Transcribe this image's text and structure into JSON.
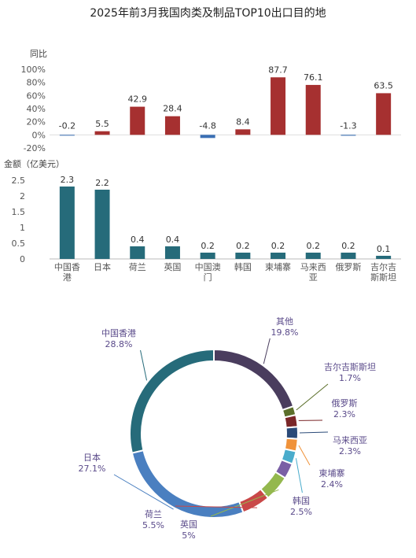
{
  "title": "2025年前3月我国肉类及制品TOP10出口目的地",
  "colors": {
    "yoy_positive": "#a63030",
    "yoy_negative": "#3a6fb3",
    "amount_bar": "#266b7a",
    "pie_label_text": "#5a4a8a"
  },
  "chart_data": [
    {
      "type": "bar",
      "name": "yoy",
      "ylabel": "同比",
      "unit": "%",
      "categories": [
        "中国香港",
        "日本",
        "荷兰",
        "英国",
        "中国澳门",
        "韩国",
        "柬埔寨",
        "马来西亚",
        "俄罗斯",
        "吉尔吉斯斯坦"
      ],
      "values": [
        -0.2,
        5.5,
        42.9,
        28.4,
        -4.8,
        8.4,
        87.7,
        76.1,
        -1.3,
        63.5
      ],
      "value_labels": [
        "-0.2",
        "5.5",
        "42.9",
        "28.4",
        "-4.8",
        "8.4",
        "87.7",
        "76.1",
        "-1.3",
        "63.5"
      ],
      "ylim": [
        -20,
        100
      ],
      "yticks": [
        -20,
        0,
        20,
        40,
        60,
        80,
        100
      ],
      "ytick_labels": [
        "-20%",
        "0%",
        "20%",
        "40%",
        "60%",
        "80%",
        "100%"
      ]
    },
    {
      "type": "bar",
      "name": "amount",
      "ylabel": "金额（亿美元）",
      "categories": [
        "中国香港",
        "日本",
        "荷兰",
        "英国",
        "中国澳门",
        "韩国",
        "柬埔寨",
        "马来西亚",
        "俄罗斯",
        "吉尔吉斯斯坦"
      ],
      "category_lines": [
        [
          "中国香",
          "港"
        ],
        [
          "日本"
        ],
        [
          "荷兰"
        ],
        [
          "英国"
        ],
        [
          "中国澳",
          "门"
        ],
        [
          "韩国"
        ],
        [
          "柬埔寨"
        ],
        [
          "马来西",
          "亚"
        ],
        [
          "俄罗斯"
        ],
        [
          "吉尔吉",
          "斯斯坦"
        ]
      ],
      "values": [
        2.3,
        2.2,
        0.4,
        0.4,
        0.2,
        0.2,
        0.2,
        0.2,
        0.2,
        0.1
      ],
      "value_labels": [
        "2.3",
        "2.2",
        "0.4",
        "0.4",
        "0.2",
        "0.2",
        "0.2",
        "0.2",
        "0.2",
        "0.1"
      ],
      "ylim": [
        0,
        2.5
      ],
      "yticks": [
        0,
        0.5,
        1,
        1.5,
        2,
        2.5
      ],
      "ytick_labels": [
        "0",
        "0.5",
        "1",
        "1.5",
        "2",
        "2.5"
      ]
    },
    {
      "type": "pie",
      "name": "share",
      "start": "12 o'clock",
      "direction": "clockwise",
      "slices": [
        {
          "label": "其他",
          "value": 19.8,
          "display": "19.8%",
          "color": "#4a3d5e"
        },
        {
          "label": "吉尔吉斯斯坦",
          "value": 1.7,
          "display": "1.7%",
          "color": "#5b6f2a"
        },
        {
          "label": "俄罗斯",
          "value": 2.3,
          "display": "2.3%",
          "color": "#7a2628"
        },
        {
          "label": "马来西亚",
          "value": 2.3,
          "display": "2.3%",
          "color": "#2a4a78"
        },
        {
          "label": "柬埔寨",
          "value": 2.4,
          "display": "2.4%",
          "color": "#f0923a"
        },
        {
          "label": "韩国",
          "value": 2.5,
          "display": "2.5%",
          "color": "#4aaccc"
        },
        {
          "label": "中国澳门",
          "value": 3.0,
          "display": "",
          "color": "#7a5fa5"
        },
        {
          "label": "英国",
          "value": 5.0,
          "display": "5%",
          "color": "#94b84e"
        },
        {
          "label": "荷兰",
          "value": 5.5,
          "display": "5.5%",
          "color": "#c94848"
        },
        {
          "label": "日本",
          "value": 27.1,
          "display": "27.1%",
          "color": "#4a7fc0"
        },
        {
          "label": "中国香港",
          "value": 28.8,
          "display": "28.8%",
          "color": "#266b7a"
        }
      ]
    }
  ]
}
